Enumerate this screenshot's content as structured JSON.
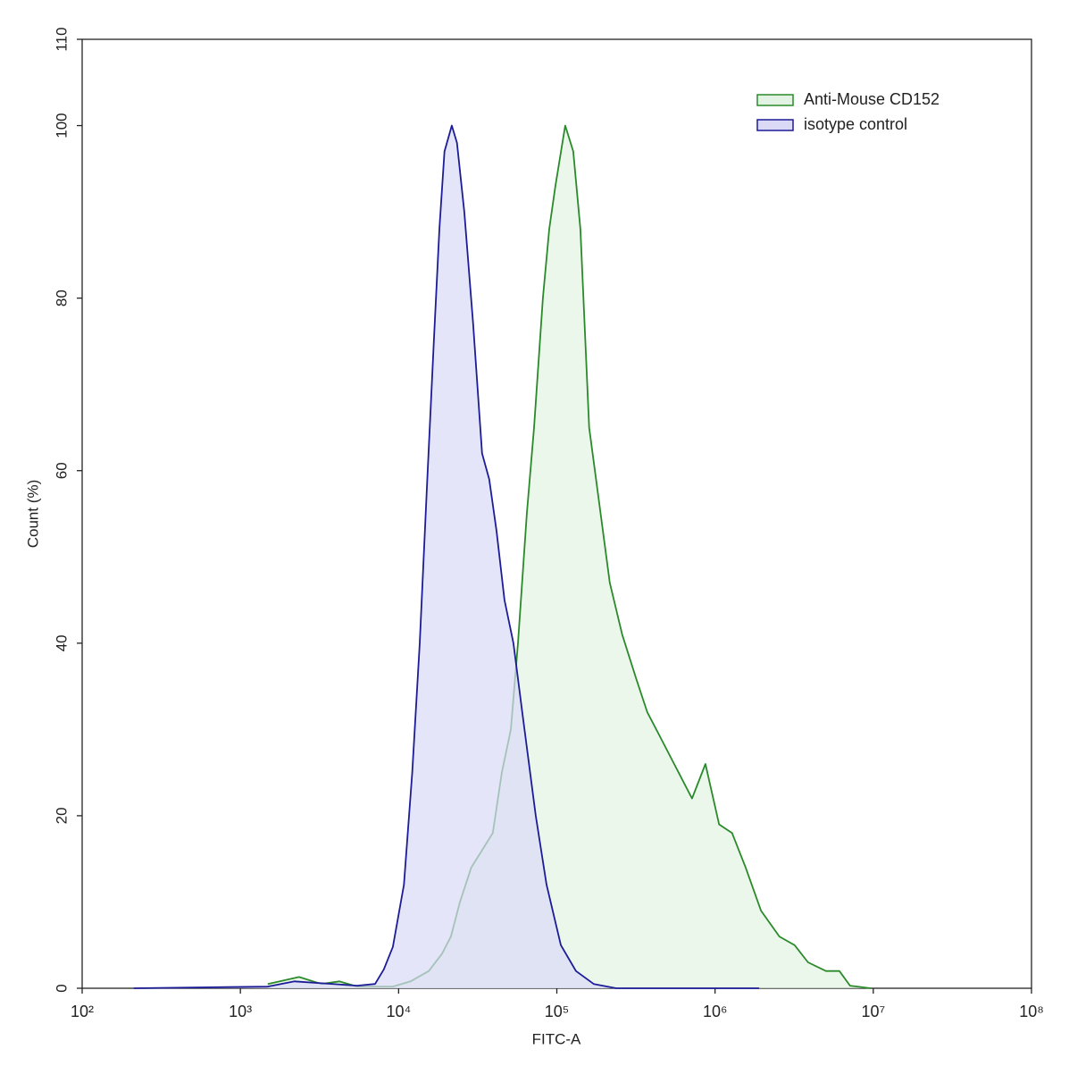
{
  "chart_data": {
    "type": "area",
    "x_label": "FITC-A",
    "y_label": "Count  (%)",
    "xscale": "log",
    "xlim": [
      100,
      100000000
    ],
    "xticks": [
      {
        "value": 100,
        "label": "10²"
      },
      {
        "value": 1000,
        "label": "10³"
      },
      {
        "value": 10000,
        "label": "10⁴"
      },
      {
        "value": 100000,
        "label": "10⁵"
      },
      {
        "value": 1000000,
        "label": "10⁶"
      },
      {
        "value": 10000000,
        "label": "10⁷"
      },
      {
        "value": 100000000,
        "label": "10⁸"
      }
    ],
    "ylim": [
      0,
      110
    ],
    "yticks": [
      0,
      20,
      40,
      60,
      80,
      100,
      110
    ],
    "legend": "upper right",
    "series": [
      {
        "name": "Anti-Mouse CD152",
        "color": "#2a8a2a",
        "fill_color": "#e3f3e3",
        "x": [
          1490,
          2350,
          3250,
          4220,
          5470,
          9200,
          11900,
          15500,
          18800,
          21400,
          24400,
          28800,
          33700,
          39400,
          44900,
          51200,
          56800,
          64600,
          71800,
          81700,
          89500,
          98000,
          113000,
          127000,
          141000,
          160000,
          183000,
          216000,
          259000,
          316000,
          373000,
          454000,
          552000,
          715000,
          869000,
          1060000,
          1280000,
          1560000,
          1950000,
          2550000,
          3180000,
          3870000,
          5020000,
          6110000,
          7130000,
          9620000
        ],
        "values": [
          0.5,
          1.3,
          0.5,
          0.8,
          0.2,
          0.2,
          0.8,
          2,
          4,
          6,
          10,
          14,
          16,
          18,
          25,
          30,
          40,
          55,
          65,
          80,
          88,
          93,
          100,
          97,
          88,
          65,
          57,
          47,
          41,
          36,
          32,
          29,
          26,
          22,
          26,
          19,
          18,
          14,
          9,
          6,
          5,
          3,
          2,
          2,
          0.3,
          0
        ]
      },
      {
        "name": "isotype control",
        "color": "#1c1c96",
        "fill_color": "#dadaf6",
        "x": [
          212,
          1490,
          2200,
          5470,
          7100,
          8070,
          9200,
          10800,
          12200,
          13600,
          15100,
          16700,
          18100,
          19500,
          21700,
          23400,
          26000,
          29600,
          33700,
          37400,
          41600,
          46700,
          53200,
          60500,
          73600,
          86100,
          106000,
          132000,
          171000,
          237000,
          1900000
        ],
        "values": [
          0,
          0.2,
          0.8,
          0.3,
          0.5,
          2.2,
          4.8,
          12,
          25,
          40,
          58,
          75,
          88,
          97,
          100,
          98,
          90,
          77,
          62,
          59,
          53,
          45,
          40,
          32,
          20,
          12,
          5,
          2,
          0.5,
          0,
          0
        ]
      }
    ]
  }
}
